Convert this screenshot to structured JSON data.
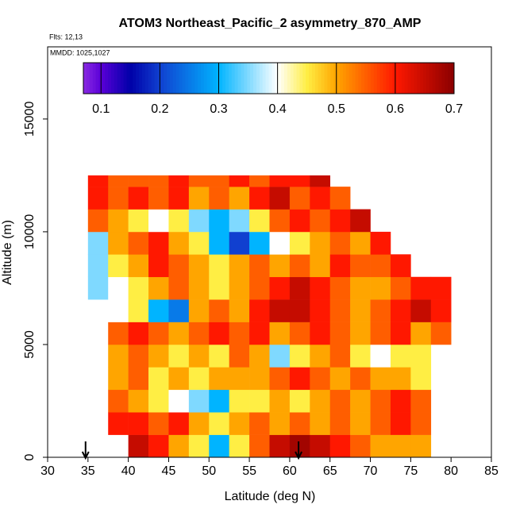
{
  "chart_data": {
    "type": "heatmap",
    "title": "ATOM3 Northeast_Pacific_2 asymmetry_870_AMP",
    "flights": "Flts: 12,13",
    "dates": "MMDD: 1025,1027",
    "xlabel": "Latitude (deg N)",
    "ylabel": "Altitude (m)",
    "xlim": [
      30,
      85
    ],
    "xticks": [
      30,
      35,
      40,
      45,
      50,
      55,
      60,
      65,
      70,
      75,
      80,
      85
    ],
    "ylim": [
      0,
      18200
    ],
    "yticks": [
      0,
      5000,
      10000,
      15000
    ],
    "x_bins": [
      35,
      37.5,
      40,
      42.5,
      45,
      47.5,
      50,
      52.5,
      55,
      57.5,
      60,
      62.5,
      65,
      67.5,
      70,
      72.5,
      75,
      77.5,
      80
    ],
    "y_bins": [
      0,
      1000,
      2000,
      3000,
      4000,
      5000,
      6000,
      7000,
      8000,
      9000,
      10000,
      11000,
      12000,
      12500
    ],
    "values": [
      [
        null,
        null,
        0.65,
        0.6,
        0.5,
        0.45,
        0.3,
        0.45,
        0.55,
        0.65,
        0.68,
        0.65,
        0.6,
        0.55,
        0.5,
        0.5,
        0.5,
        null
      ],
      [
        null,
        0.6,
        0.6,
        0.55,
        0.6,
        0.5,
        0.45,
        0.5,
        0.55,
        0.5,
        0.55,
        0.5,
        0.55,
        0.5,
        0.55,
        0.6,
        0.55,
        null
      ],
      [
        null,
        0.55,
        0.5,
        0.45,
        0.4,
        0.35,
        0.3,
        0.45,
        0.45,
        0.5,
        0.45,
        0.5,
        0.55,
        0.5,
        0.55,
        0.6,
        0.55,
        null
      ],
      [
        null,
        0.5,
        0.55,
        0.45,
        0.5,
        0.45,
        0.5,
        0.5,
        0.5,
        0.55,
        0.6,
        0.55,
        0.5,
        0.55,
        0.5,
        0.5,
        0.45,
        null
      ],
      [
        null,
        0.5,
        0.55,
        0.5,
        0.45,
        0.5,
        0.45,
        0.55,
        0.5,
        0.35,
        0.45,
        0.5,
        0.55,
        0.45,
        0.4,
        0.45,
        0.45,
        null
      ],
      [
        null,
        0.55,
        0.6,
        0.55,
        0.5,
        0.55,
        0.6,
        0.55,
        0.6,
        0.5,
        0.55,
        0.6,
        0.55,
        0.5,
        0.55,
        0.6,
        0.5,
        0.55
      ],
      [
        null,
        0.4,
        0.45,
        0.3,
        0.25,
        0.5,
        0.55,
        0.5,
        0.6,
        0.65,
        0.65,
        0.6,
        0.55,
        0.5,
        0.55,
        0.6,
        0.65,
        0.6
      ],
      [
        0.35,
        0.4,
        0.45,
        0.5,
        0.55,
        0.5,
        0.45,
        0.5,
        0.55,
        0.6,
        0.65,
        0.6,
        0.55,
        0.5,
        0.5,
        0.55,
        0.6,
        0.6
      ],
      [
        0.35,
        0.45,
        0.5,
        0.6,
        0.55,
        0.5,
        0.45,
        0.5,
        0.55,
        0.5,
        0.55,
        0.5,
        0.6,
        0.55,
        0.55,
        0.6,
        null,
        null
      ],
      [
        0.35,
        0.5,
        0.55,
        0.6,
        0.5,
        0.45,
        0.3,
        0.2,
        0.3,
        0.4,
        0.45,
        0.5,
        0.55,
        0.5,
        0.6,
        null,
        null,
        null
      ],
      [
        0.55,
        0.5,
        0.45,
        0.4,
        0.45,
        0.35,
        0.3,
        0.35,
        0.45,
        0.55,
        0.6,
        0.55,
        0.6,
        0.65,
        null,
        null,
        null,
        null
      ],
      [
        0.6,
        0.55,
        0.6,
        0.55,
        0.6,
        0.5,
        0.55,
        0.5,
        0.6,
        0.65,
        0.55,
        0.6,
        0.55,
        null,
        null,
        null,
        null,
        null
      ],
      [
        0.6,
        0.55,
        0.55,
        0.55,
        0.6,
        0.55,
        0.55,
        0.6,
        0.55,
        0.6,
        0.6,
        0.65,
        null,
        null,
        null,
        null,
        null,
        null
      ]
    ],
    "colorscale": [
      [
        0.07,
        "#8a2be2"
      ],
      [
        0.1,
        "#5a00d8"
      ],
      [
        0.15,
        "#0000a8"
      ],
      [
        0.2,
        "#1040d0"
      ],
      [
        0.3,
        "#00b4ff"
      ],
      [
        0.4,
        "#ffffff"
      ],
      [
        0.45,
        "#ffee44"
      ],
      [
        0.5,
        "#ffa500"
      ],
      [
        0.6,
        "#ff1800"
      ],
      [
        0.7,
        "#8b0000"
      ]
    ],
    "colorbar_lim": [
      0.07,
      0.7
    ],
    "colorbar_ticks": [
      0.1,
      0.2,
      0.3,
      0.4,
      0.5,
      0.6,
      0.7
    ],
    "arrows_x": [
      34.7,
      61.1
    ]
  }
}
